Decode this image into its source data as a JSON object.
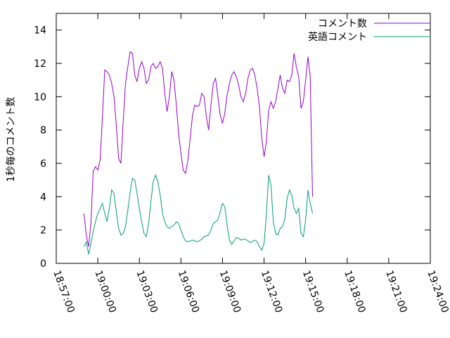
{
  "chart_data": {
    "type": "line",
    "title": "",
    "xlabel": "",
    "ylabel": "1秒毎のコメント数",
    "xlim": [
      "18:57:00",
      "19:24:00"
    ],
    "ylim": [
      0,
      15
    ],
    "x_ticks": [
      "18:57:00",
      "19:00:00",
      "19:03:00",
      "19:06:00",
      "19:09:00",
      "19:12:00",
      "19:15:00",
      "19:18:00",
      "19:21:00",
      "19:24:00"
    ],
    "y_ticks": [
      0,
      2,
      4,
      6,
      8,
      10,
      12,
      14
    ],
    "grid": false,
    "legend_position": "top-right",
    "series": [
      {
        "name": "コメント数",
        "color": "#9400d3",
        "points": [
          [
            "18:59:00",
            3.0
          ],
          [
            "18:59:10",
            1.7
          ],
          [
            "18:59:20",
            1.0
          ],
          [
            "18:59:30",
            2.4
          ],
          [
            "18:59:40",
            5.5
          ],
          [
            "18:59:50",
            5.8
          ],
          [
            "19:00:00",
            5.6
          ],
          [
            "19:00:10",
            6.2
          ],
          [
            "19:00:20",
            8.8
          ],
          [
            "19:00:30",
            11.6
          ],
          [
            "19:00:40",
            11.5
          ],
          [
            "19:00:50",
            11.3
          ],
          [
            "19:01:00",
            10.8
          ],
          [
            "19:01:10",
            10.0
          ],
          [
            "19:01:20",
            8.3
          ],
          [
            "19:01:30",
            6.3
          ],
          [
            "19:01:40",
            6.0
          ],
          [
            "19:01:50",
            8.5
          ],
          [
            "19:02:00",
            10.8
          ],
          [
            "19:02:10",
            11.8
          ],
          [
            "19:02:20",
            12.7
          ],
          [
            "19:02:30",
            12.6
          ],
          [
            "19:02:40",
            11.3
          ],
          [
            "19:02:50",
            10.9
          ],
          [
            "19:03:00",
            11.7
          ],
          [
            "19:03:10",
            12.1
          ],
          [
            "19:03:20",
            11.7
          ],
          [
            "19:03:30",
            10.8
          ],
          [
            "19:03:40",
            11.0
          ],
          [
            "19:03:50",
            11.8
          ],
          [
            "19:04:00",
            12.0
          ],
          [
            "19:04:10",
            11.7
          ],
          [
            "19:04:20",
            11.8
          ],
          [
            "19:04:30",
            12.1
          ],
          [
            "19:04:40",
            11.7
          ],
          [
            "19:04:50",
            10.2
          ],
          [
            "19:05:00",
            9.1
          ],
          [
            "19:05:10",
            10.0
          ],
          [
            "19:05:20",
            11.5
          ],
          [
            "19:05:30",
            11.0
          ],
          [
            "19:05:40",
            9.5
          ],
          [
            "19:05:50",
            7.8
          ],
          [
            "19:06:00",
            6.6
          ],
          [
            "19:06:10",
            5.6
          ],
          [
            "19:06:20",
            5.4
          ],
          [
            "19:06:30",
            6.2
          ],
          [
            "19:06:40",
            7.5
          ],
          [
            "19:06:50",
            8.9
          ],
          [
            "19:07:00",
            9.5
          ],
          [
            "19:07:10",
            9.4
          ],
          [
            "19:07:20",
            9.5
          ],
          [
            "19:07:30",
            10.2
          ],
          [
            "19:07:40",
            10.0
          ],
          [
            "19:07:50",
            8.8
          ],
          [
            "19:08:00",
            8.0
          ],
          [
            "19:08:10",
            9.5
          ],
          [
            "19:08:20",
            10.8
          ],
          [
            "19:08:30",
            11.1
          ],
          [
            "19:08:40",
            10.0
          ],
          [
            "19:08:50",
            8.9
          ],
          [
            "19:09:00",
            8.4
          ],
          [
            "19:09:10",
            9.0
          ],
          [
            "19:09:20",
            10.1
          ],
          [
            "19:09:30",
            10.8
          ],
          [
            "19:09:40",
            11.3
          ],
          [
            "19:09:50",
            11.5
          ],
          [
            "19:10:00",
            11.2
          ],
          [
            "19:10:10",
            10.7
          ],
          [
            "19:10:20",
            10.0
          ],
          [
            "19:10:30",
            9.7
          ],
          [
            "19:10:40",
            10.2
          ],
          [
            "19:10:50",
            11.1
          ],
          [
            "19:11:00",
            11.6
          ],
          [
            "19:11:10",
            11.7
          ],
          [
            "19:11:20",
            11.3
          ],
          [
            "19:11:30",
            10.5
          ],
          [
            "19:11:40",
            9.4
          ],
          [
            "19:11:50",
            7.5
          ],
          [
            "19:12:00",
            6.4
          ],
          [
            "19:12:10",
            7.3
          ],
          [
            "19:12:20",
            9.2
          ],
          [
            "19:12:30",
            9.7
          ],
          [
            "19:12:40",
            9.3
          ],
          [
            "19:12:50",
            9.7
          ],
          [
            "19:13:00",
            10.5
          ],
          [
            "19:13:10",
            11.3
          ],
          [
            "19:13:20",
            10.5
          ],
          [
            "19:13:30",
            10.2
          ],
          [
            "19:13:40",
            11.0
          ],
          [
            "19:13:50",
            10.9
          ],
          [
            "19:14:00",
            11.3
          ],
          [
            "19:14:10",
            12.6
          ],
          [
            "19:14:20",
            11.8
          ],
          [
            "19:14:30",
            11.2
          ],
          [
            "19:14:40",
            9.3
          ],
          [
            "19:14:50",
            9.7
          ],
          [
            "19:15:00",
            11.0
          ],
          [
            "19:15:10",
            12.4
          ],
          [
            "19:15:20",
            11.2
          ],
          [
            "19:15:30",
            4.0
          ]
        ]
      },
      {
        "name": "英語コメント",
        "color": "#009e73",
        "points": [
          [
            "18:59:00",
            1.0
          ],
          [
            "18:59:10",
            1.3
          ],
          [
            "18:59:20",
            0.55
          ],
          [
            "18:59:30",
            1.2
          ],
          [
            "18:59:40",
            1.9
          ],
          [
            "18:59:50",
            2.5
          ],
          [
            "19:00:00",
            3.0
          ],
          [
            "19:00:10",
            3.3
          ],
          [
            "19:00:20",
            3.6
          ],
          [
            "19:00:30",
            3.0
          ],
          [
            "19:00:40",
            2.5
          ],
          [
            "19:00:50",
            3.3
          ],
          [
            "19:01:00",
            4.4
          ],
          [
            "19:01:10",
            4.2
          ],
          [
            "19:01:20",
            3.1
          ],
          [
            "19:01:30",
            2.1
          ],
          [
            "19:01:40",
            1.7
          ],
          [
            "19:01:50",
            1.8
          ],
          [
            "19:02:00",
            2.2
          ],
          [
            "19:02:10",
            3.2
          ],
          [
            "19:02:20",
            4.3
          ],
          [
            "19:02:30",
            5.1
          ],
          [
            "19:02:40",
            5.0
          ],
          [
            "19:02:50",
            4.2
          ],
          [
            "19:03:00",
            3.3
          ],
          [
            "19:03:10",
            2.5
          ],
          [
            "19:03:20",
            1.8
          ],
          [
            "19:03:30",
            1.6
          ],
          [
            "19:03:40",
            2.4
          ],
          [
            "19:03:50",
            3.7
          ],
          [
            "19:04:00",
            4.9
          ],
          [
            "19:04:10",
            5.3
          ],
          [
            "19:04:20",
            4.9
          ],
          [
            "19:04:30",
            4.1
          ],
          [
            "19:04:40",
            3.0
          ],
          [
            "19:04:50",
            2.5
          ],
          [
            "19:05:00",
            2.2
          ],
          [
            "19:05:10",
            2.1
          ],
          [
            "19:05:20",
            2.2
          ],
          [
            "19:05:30",
            2.3
          ],
          [
            "19:05:40",
            2.5
          ],
          [
            "19:05:50",
            2.4
          ],
          [
            "19:06:00",
            2.0
          ],
          [
            "19:06:10",
            1.6
          ],
          [
            "19:06:20",
            1.35
          ],
          [
            "19:06:30",
            1.3
          ],
          [
            "19:06:40",
            1.35
          ],
          [
            "19:06:50",
            1.4
          ],
          [
            "19:07:00",
            1.35
          ],
          [
            "19:07:10",
            1.3
          ],
          [
            "19:07:20",
            1.35
          ],
          [
            "19:07:30",
            1.45
          ],
          [
            "19:07:40",
            1.6
          ],
          [
            "19:07:50",
            1.65
          ],
          [
            "19:08:00",
            1.7
          ],
          [
            "19:08:10",
            2.0
          ],
          [
            "19:08:20",
            2.4
          ],
          [
            "19:08:30",
            2.5
          ],
          [
            "19:08:40",
            2.6
          ],
          [
            "19:08:50",
            3.1
          ],
          [
            "19:09:00",
            3.6
          ],
          [
            "19:09:10",
            3.4
          ],
          [
            "19:09:20",
            2.3
          ],
          [
            "19:09:30",
            1.4
          ],
          [
            "19:09:40",
            1.15
          ],
          [
            "19:09:50",
            1.35
          ],
          [
            "19:10:00",
            1.55
          ],
          [
            "19:10:10",
            1.5
          ],
          [
            "19:10:20",
            1.4
          ],
          [
            "19:10:30",
            1.45
          ],
          [
            "19:10:40",
            1.45
          ],
          [
            "19:10:50",
            1.35
          ],
          [
            "19:11:00",
            1.25
          ],
          [
            "19:11:10",
            1.3
          ],
          [
            "19:11:20",
            1.4
          ],
          [
            "19:11:30",
            1.3
          ],
          [
            "19:11:40",
            1.0
          ],
          [
            "19:11:50",
            0.8
          ],
          [
            "19:12:00",
            1.2
          ],
          [
            "19:12:10",
            2.9
          ],
          [
            "19:12:20",
            5.3
          ],
          [
            "19:12:30",
            4.7
          ],
          [
            "19:12:40",
            2.5
          ],
          [
            "19:12:50",
            1.8
          ],
          [
            "19:13:00",
            1.7
          ],
          [
            "19:13:10",
            2.1
          ],
          [
            "19:13:20",
            2.2
          ],
          [
            "19:13:30",
            2.7
          ],
          [
            "19:13:40",
            3.9
          ],
          [
            "19:13:50",
            4.4
          ],
          [
            "19:14:00",
            4.1
          ],
          [
            "19:14:10",
            3.3
          ],
          [
            "19:14:20",
            3.0
          ],
          [
            "19:14:30",
            3.3
          ],
          [
            "19:14:40",
            1.8
          ],
          [
            "19:14:50",
            1.6
          ],
          [
            "19:15:00",
            2.6
          ],
          [
            "19:15:10",
            4.4
          ],
          [
            "19:15:20",
            3.6
          ],
          [
            "19:15:30",
            3.0
          ]
        ]
      }
    ]
  }
}
